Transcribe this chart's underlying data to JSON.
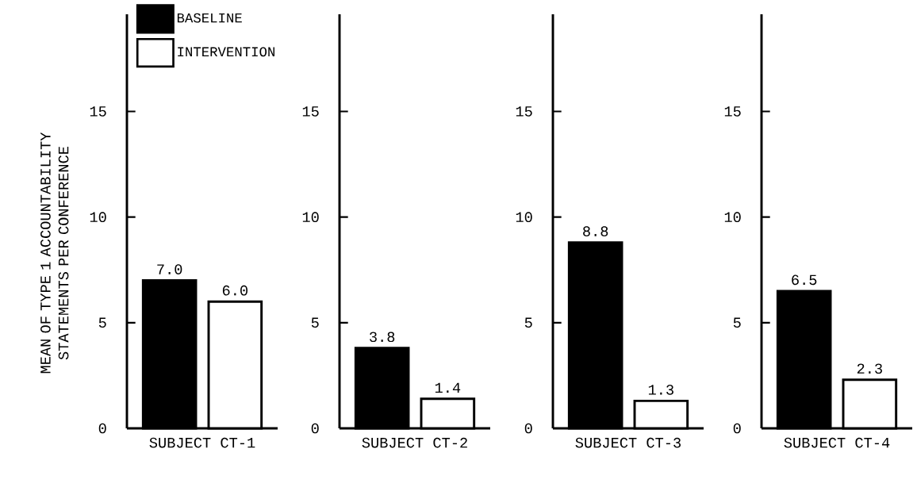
{
  "chart_data": [
    {
      "type": "bar",
      "categories": [
        null
      ],
      "xlabel": "SUBJECT CT-1",
      "ylabel": "MEAN OF TYPE 1 ACCOUNTABILITY STATEMENTS PER CONFERENCE",
      "ylim": [
        0,
        19.6
      ],
      "yticks": [
        0,
        5,
        10,
        15
      ],
      "legend": "top left",
      "series": [
        {
          "name": "BASELINE",
          "color": "#000000",
          "values": [
            7.0
          ],
          "value_labels": [
            "7.0"
          ]
        },
        {
          "name": "INTERVENTION",
          "color": "#ffffff",
          "values": [
            6.0
          ],
          "value_labels": [
            "6.0"
          ]
        }
      ]
    },
    {
      "type": "bar",
      "categories": [
        null
      ],
      "xlabel": "SUBJECT CT-2",
      "ylim": [
        0,
        19.6
      ],
      "yticks": [
        0,
        5,
        10,
        15
      ],
      "series": [
        {
          "color": "#000000",
          "values": [
            3.8
          ],
          "value_labels": [
            "3.8"
          ]
        },
        {
          "color": "#ffffff",
          "values": [
            1.4
          ],
          "value_labels": [
            "1.4"
          ]
        }
      ]
    },
    {
      "type": "bar",
      "categories": [
        null
      ],
      "xlabel": "SUBJECT CT-3",
      "ylim": [
        0,
        19.6
      ],
      "yticks": [
        0,
        5,
        10,
        15
      ],
      "series": [
        {
          "color": "#000000",
          "values": [
            8.8
          ],
          "value_labels": [
            "8.8"
          ]
        },
        {
          "color": "#ffffff",
          "values": [
            1.3
          ],
          "value_labels": [
            "1.3"
          ]
        }
      ]
    },
    {
      "type": "bar",
      "categories": [
        null
      ],
      "xlabel": "SUBJECT CT-4",
      "ylim": [
        0,
        19.6
      ],
      "yticks": [
        0,
        5,
        10,
        15
      ],
      "series": [
        {
          "color": "#000000",
          "values": [
            6.5
          ],
          "value_labels": [
            "6.5"
          ]
        },
        {
          "color": "#ffffff",
          "values": [
            2.3
          ],
          "value_labels": [
            "2.3"
          ]
        }
      ]
    }
  ]
}
